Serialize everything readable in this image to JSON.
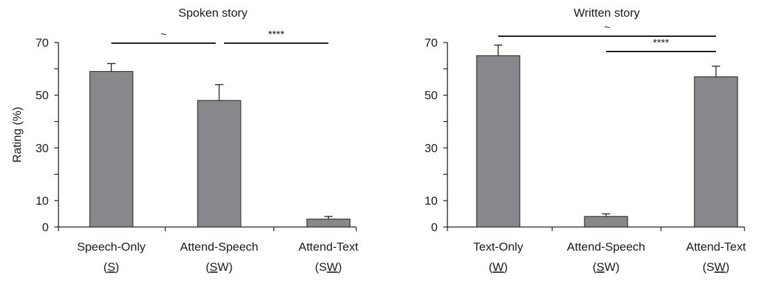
{
  "chart_data": [
    {
      "type": "bar",
      "title": "Spoken story",
      "ylabel": "Rating (%)",
      "ylim": [
        0,
        70
      ],
      "yticks": [
        0,
        10,
        30,
        50,
        70
      ],
      "categories": [
        {
          "name": "Speech-Only",
          "code": "(S)",
          "underline": "S"
        },
        {
          "name": "Attend-Speech",
          "code": "(SW)",
          "underline": "S"
        },
        {
          "name": "Attend-Text",
          "code": "(SW)",
          "underline": "W"
        }
      ],
      "values": [
        59,
        48,
        3
      ],
      "errors": [
        3,
        6,
        1
      ],
      "bar_color": "#87888c",
      "significance": [
        {
          "from": 0,
          "to": 1,
          "label": "~"
        },
        {
          "from": 1,
          "to": 2,
          "label": "****"
        }
      ]
    },
    {
      "type": "bar",
      "title": "Written story",
      "ylabel": "",
      "ylim": [
        0,
        70
      ],
      "yticks": [
        0,
        10,
        30,
        50,
        70
      ],
      "categories": [
        {
          "name": "Text-Only",
          "code": "(W)",
          "underline": "W"
        },
        {
          "name": "Attend-Speech",
          "code": "(SW)",
          "underline": "S"
        },
        {
          "name": "Attend-Text",
          "code": "(SW)",
          "underline": "W"
        }
      ],
      "values": [
        65,
        4,
        57
      ],
      "errors": [
        4,
        1,
        4
      ],
      "bar_color": "#87888c",
      "significance": [
        {
          "from": 0,
          "to": 2,
          "label": "~"
        },
        {
          "from": 1,
          "to": 2,
          "label": "****"
        }
      ]
    }
  ]
}
